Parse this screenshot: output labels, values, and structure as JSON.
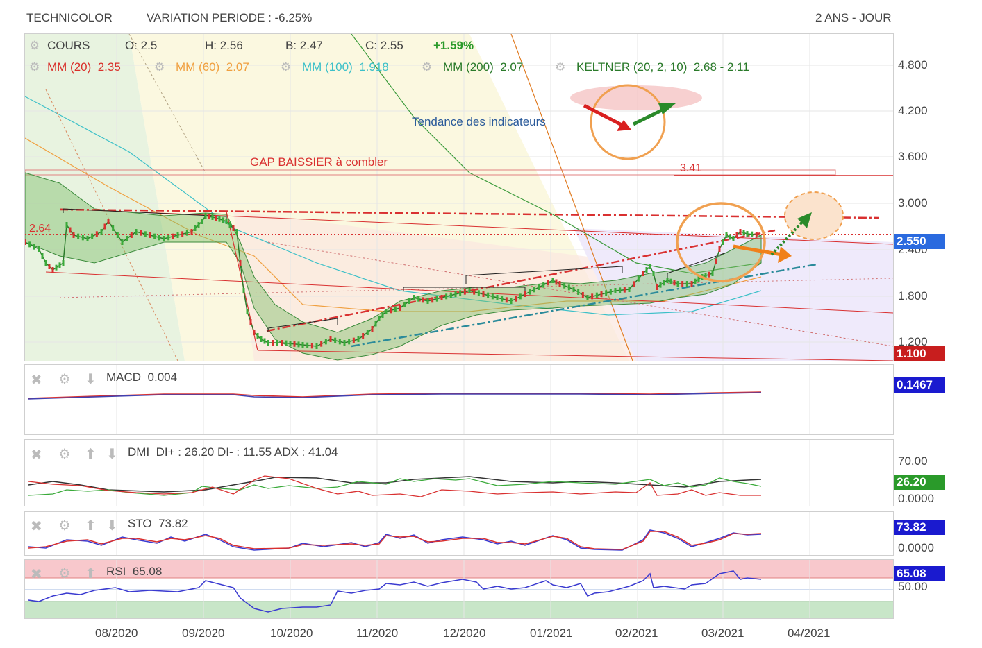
{
  "header": {
    "title": "TECHNICOLOR",
    "variation": "VARIATION PERIODE : -6.25%",
    "period": "2 ANS - JOUR"
  },
  "legend": {
    "cours": "COURS",
    "o": "O: 2.5",
    "h": "H: 2.56",
    "b": "B: 2.47",
    "c": "C: 2.55",
    "change": "+1.59%",
    "mm20_label": "MM (20)",
    "mm20_val": "2.35",
    "mm60_label": "MM (60)",
    "mm60_val": "2.07",
    "mm100_label": "MM (100)",
    "mm100_val": "1.918",
    "mm200_label": "MM (200)",
    "mm200_val": "2.07",
    "keltner_label": "KELTNER (20, 2, 10)",
    "keltner_val": "2.68 - 2.11"
  },
  "annotations": {
    "trend": "Tendance des indicateurs",
    "gap": "GAP BAISSIER à combler",
    "level_341": "3.41",
    "level_264": "2.64"
  },
  "price_axis": {
    "ticks": [
      "4.800",
      "4.200",
      "3.600",
      "3.000",
      "2.400",
      "1.800",
      "1.200"
    ],
    "current": "2.550",
    "low_badge": "1.100"
  },
  "indicators": {
    "macd": {
      "label": "MACD",
      "value": "0.004",
      "badge": "0.1467"
    },
    "dmi": {
      "label": "DMI",
      "value": "DI+ : 26.20 DI- : 11.55 ADX : 41.04",
      "tick": "70.00",
      "badge": "26.20",
      "tick2": "0.0000"
    },
    "sto": {
      "label": "STO",
      "value": "73.82",
      "badge": "73.82",
      "tick": "0.0000"
    },
    "rsi": {
      "label": "RSI",
      "value": "65.08",
      "badge": "65.08",
      "tick": "50.00"
    }
  },
  "months": [
    "08/2020",
    "09/2020",
    "10/2020",
    "11/2020",
    "12/2020",
    "01/2021",
    "02/2021",
    "03/2021",
    "04/2021"
  ],
  "colors": {
    "mm20": "#d9302a",
    "mm60": "#f0a040",
    "mm100": "#3cc0c8",
    "mm200": "#3a9a3a",
    "keltner": "#3a8a3a",
    "badge_blue": "#2a6adf",
    "badge_red": "#c81e1e",
    "badge_green": "#2a9a2a",
    "badge_navy": "#1a1acf"
  },
  "chart_data": {
    "type": "line",
    "title": "TECHNICOLOR",
    "ylim": [
      1.1,
      5.0
    ],
    "x": [
      "07/2020",
      "08/2020",
      "09/2020",
      "09/2020",
      "10/2020",
      "11/2020",
      "12/2020",
      "01/2021",
      "02/2021",
      "03/2021",
      "03/2021"
    ],
    "series": [
      {
        "name": "COURS",
        "values": [
          2.9,
          2.65,
          2.8,
          2.7,
          1.2,
          1.4,
          1.9,
          2.0,
          2.1,
          2.4,
          2.55
        ]
      }
    ]
  }
}
